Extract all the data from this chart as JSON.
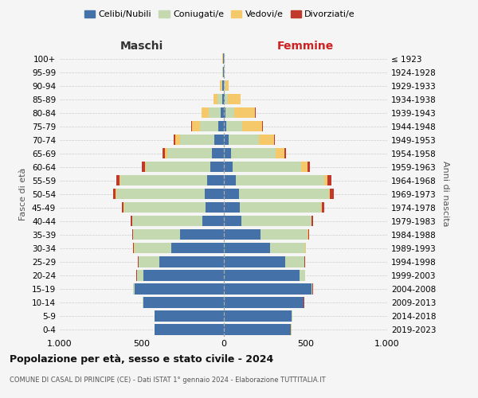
{
  "age_groups": [
    "0-4",
    "5-9",
    "10-14",
    "15-19",
    "20-24",
    "25-29",
    "30-34",
    "35-39",
    "40-44",
    "45-49",
    "50-54",
    "55-59",
    "60-64",
    "65-69",
    "70-74",
    "75-79",
    "80-84",
    "85-89",
    "90-94",
    "95-99",
    "100+"
  ],
  "birth_years": [
    "2019-2023",
    "2014-2018",
    "2009-2013",
    "2004-2008",
    "1999-2003",
    "1994-1998",
    "1989-1993",
    "1984-1988",
    "1979-1983",
    "1974-1978",
    "1969-1973",
    "1964-1968",
    "1959-1963",
    "1954-1958",
    "1949-1953",
    "1944-1948",
    "1939-1943",
    "1934-1938",
    "1929-1933",
    "1924-1928",
    "≤ 1923"
  ],
  "maschi": {
    "celibi": [
      420,
      420,
      490,
      545,
      490,
      390,
      320,
      265,
      130,
      110,
      115,
      100,
      80,
      70,
      55,
      30,
      18,
      8,
      5,
      2,
      2
    ],
    "coniugati": [
      1,
      1,
      2,
      5,
      38,
      128,
      225,
      285,
      425,
      498,
      540,
      530,
      395,
      275,
      210,
      115,
      70,
      30,
      8,
      3,
      2
    ],
    "vedovi": [
      1,
      1,
      1,
      1,
      2,
      2,
      2,
      2,
      2,
      2,
      3,
      4,
      6,
      12,
      28,
      45,
      45,
      22,
      8,
      2,
      1
    ],
    "divorziati": [
      1,
      1,
      1,
      1,
      2,
      2,
      4,
      6,
      8,
      12,
      18,
      22,
      18,
      15,
      10,
      5,
      3,
      2,
      0,
      0,
      0
    ]
  },
  "femmine": {
    "nubili": [
      412,
      418,
      488,
      540,
      465,
      375,
      285,
      228,
      108,
      98,
      95,
      75,
      58,
      45,
      32,
      18,
      12,
      6,
      4,
      2,
      2
    ],
    "coniugate": [
      1,
      1,
      2,
      4,
      32,
      118,
      215,
      285,
      428,
      498,
      548,
      540,
      415,
      272,
      185,
      95,
      55,
      22,
      7,
      2,
      1
    ],
    "vedove": [
      1,
      1,
      1,
      1,
      1,
      2,
      2,
      3,
      3,
      4,
      8,
      18,
      38,
      55,
      90,
      125,
      125,
      75,
      22,
      5,
      2
    ],
    "divorziate": [
      1,
      1,
      1,
      1,
      2,
      2,
      4,
      6,
      8,
      16,
      22,
      28,
      18,
      12,
      8,
      4,
      3,
      2,
      1,
      0,
      0
    ]
  },
  "color_celibi": "#4472a8",
  "color_coniugati": "#c5d9b0",
  "color_vedovi": "#f5c96a",
  "color_divorziati": "#c0392b",
  "title": "Popolazione per età, sesso e stato civile - 2024",
  "subtitle": "COMUNE DI CASAL DI PRINCIPE (CE) - Dati ISTAT 1° gennaio 2024 - Elaborazione TUTTITALIA.IT",
  "ylabel_left": "Fasce di età",
  "ylabel_right": "Anni di nascita",
  "xlim": 1000,
  "bg_color": "#f5f5f5",
  "grid_color": "#cccccc"
}
